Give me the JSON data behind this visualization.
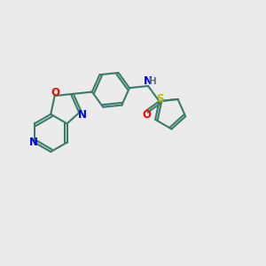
{
  "bg_color": "#ebebeb",
  "bond_color": "#3a7a6a",
  "bond_width": 1.5,
  "atom_colors": {
    "O": "#ff0000",
    "N": "#0000ee",
    "S": "#bbbb00",
    "H": "#607080",
    "C": "#3a7a6a"
  },
  "font_size": 8.5,
  "figsize": [
    3.0,
    3.0
  ],
  "dpi": 100,
  "xlim": [
    0,
    10
  ],
  "ylim": [
    2,
    8
  ]
}
